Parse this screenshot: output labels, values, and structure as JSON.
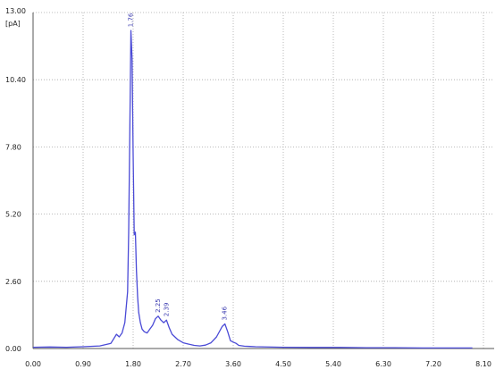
{
  "chart_data": {
    "type": "line",
    "title": "",
    "xlabel": "",
    "ylabel": "",
    "y_unit": "[pA]",
    "y_top_label": "13.00",
    "xlim": [
      0,
      8.1
    ],
    "ylim": [
      0,
      13
    ],
    "x_ticks": [
      "0.00",
      "0.90",
      "1.80",
      "2.70",
      "3.60",
      "4.50",
      "5.40",
      "6.30",
      "7.20",
      "8.10"
    ],
    "y_ticks": [
      "0.00",
      "2.60",
      "5.20",
      "7.80",
      "10.40"
    ],
    "grid": "dotted",
    "line_color": "#4a4ad6",
    "series": [
      {
        "x": [
          0,
          0.3,
          0.6,
          0.9,
          1.2,
          1.4,
          1.5,
          1.55,
          1.6,
          1.65,
          1.7,
          1.72,
          1.74,
          1.76,
          1.78,
          1.8,
          1.82,
          1.84,
          1.86,
          1.88,
          1.9,
          1.93,
          1.96,
          2.0,
          2.05,
          2.1,
          2.15,
          2.2,
          2.25,
          2.3,
          2.35,
          2.4,
          2.45,
          2.5,
          2.6,
          2.7,
          2.8,
          2.9,
          3.0,
          3.1,
          3.2,
          3.3,
          3.4,
          3.45,
          3.5,
          3.55,
          3.6,
          3.65,
          3.7,
          3.8,
          3.9,
          4.0,
          4.5,
          5.0,
          5.5,
          6.0,
          6.5,
          7.0,
          7.5,
          7.9
        ],
        "y": [
          0.05,
          0.06,
          0.05,
          0.07,
          0.1,
          0.2,
          0.55,
          0.45,
          0.6,
          1.0,
          2.2,
          4.5,
          8.5,
          12.3,
          11.2,
          7.5,
          4.4,
          4.5,
          3.0,
          2.0,
          1.4,
          1.0,
          0.75,
          0.65,
          0.6,
          0.75,
          0.9,
          1.15,
          1.25,
          1.1,
          1.0,
          1.1,
          0.8,
          0.55,
          0.35,
          0.22,
          0.17,
          0.12,
          0.1,
          0.13,
          0.22,
          0.45,
          0.85,
          0.95,
          0.65,
          0.3,
          0.25,
          0.2,
          0.12,
          0.09,
          0.08,
          0.07,
          0.05,
          0.04,
          0.04,
          0.03,
          0.03,
          0.02,
          0.02,
          0.02
        ]
      }
    ],
    "peak_labels": [
      {
        "x": 1.76,
        "y": 12.3,
        "text": "1.76"
      },
      {
        "x": 2.25,
        "y": 1.25,
        "text": "2.25"
      },
      {
        "x": 2.4,
        "y": 1.1,
        "text": "2.39"
      },
      {
        "x": 3.45,
        "y": 0.95,
        "text": "3.46"
      }
    ]
  }
}
